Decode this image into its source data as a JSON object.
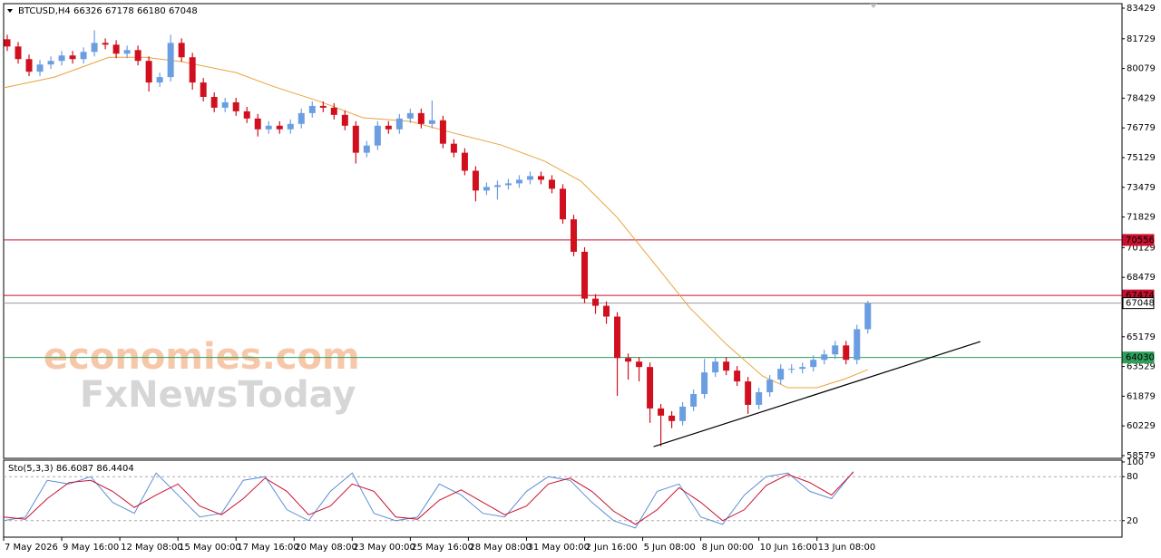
{
  "chart_data": {
    "type": "candlestick",
    "title": "BTCUSD,H4  66326 67178 66180 67048",
    "watermarks": [
      "economies.com",
      "FxNewsToday"
    ],
    "xlim": [
      0,
      308
    ],
    "xticks": [
      {
        "value": 0,
        "label": "7 May 2026"
      },
      {
        "value": 16,
        "label": "9 May 16:00"
      },
      {
        "value": 32,
        "label": "12 May 08:00"
      },
      {
        "value": 48,
        "label": "15 May 00:00"
      },
      {
        "value": 64,
        "label": "17 May 16:00"
      },
      {
        "value": 80,
        "label": "20 May 08:00"
      },
      {
        "value": 96,
        "label": "23 May 00:00"
      },
      {
        "value": 112,
        "label": "25 May 16:00"
      },
      {
        "value": 128,
        "label": "28 May 08:00"
      },
      {
        "value": 144,
        "label": "31 May 00:00"
      },
      {
        "value": 160,
        "label": "2 Jun 16:00"
      },
      {
        "value": 176,
        "label": "5 Jun 08:00"
      },
      {
        "value": 192,
        "label": "8 Jun 00:00"
      },
      {
        "value": 208,
        "label": "10 Jun 16:00"
      },
      {
        "value": 224,
        "label": "13 Jun 08:00"
      }
    ],
    "ylim": [
      58428,
      83680
    ],
    "yticks": [
      83429,
      81729,
      80079,
      78429,
      76779,
      75129,
      73479,
      71829,
      70129,
      68479,
      65179,
      63529,
      61879,
      60229,
      58579
    ],
    "up_color": "#6b9ee0",
    "down_color": "#d0101e",
    "x": [
      1,
      4,
      7,
      10,
      13,
      16,
      19,
      22,
      25,
      28,
      31,
      34,
      37,
      40,
      43,
      46,
      49,
      52,
      55,
      58,
      61,
      64,
      67,
      70,
      73,
      76,
      79,
      82,
      85,
      88,
      91,
      94,
      97,
      100,
      103,
      106,
      109,
      112,
      115,
      118,
      121,
      124,
      127,
      130,
      133,
      136,
      139,
      142,
      145,
      148,
      151,
      154,
      157,
      160,
      163,
      166,
      169,
      172,
      175,
      178,
      181,
      184,
      187,
      190,
      193,
      196,
      199,
      202,
      205,
      208,
      211,
      214,
      217,
      220,
      223,
      226,
      229,
      232,
      235,
      238
    ],
    "ohlc": [
      [
        81700,
        81950,
        81050,
        81300
      ],
      [
        81300,
        81550,
        80350,
        80600
      ],
      [
        80600,
        80850,
        79650,
        79900
      ],
      [
        79900,
        80550,
        79650,
        80300
      ],
      [
        80300,
        80750,
        80050,
        80500
      ],
      [
        80500,
        81050,
        80250,
        80800
      ],
      [
        80800,
        81050,
        80350,
        80600
      ],
      [
        80600,
        81250,
        80350,
        81000
      ],
      [
        81000,
        82200,
        80750,
        81500
      ],
      [
        81500,
        81750,
        81150,
        81400
      ],
      [
        81400,
        81650,
        80650,
        80900
      ],
      [
        80900,
        81350,
        80650,
        81100
      ],
      [
        81100,
        81350,
        80250,
        80500
      ],
      [
        80500,
        80750,
        78800,
        79300
      ],
      [
        79300,
        79850,
        79050,
        79600
      ],
      [
        79600,
        81950,
        79350,
        81500
      ],
      [
        81500,
        81750,
        80450,
        80700
      ],
      [
        80700,
        80950,
        78900,
        79300
      ],
      [
        79300,
        79550,
        78250,
        78500
      ],
      [
        78500,
        78750,
        77650,
        77900
      ],
      [
        77900,
        78450,
        77650,
        78200
      ],
      [
        78200,
        78450,
        77450,
        77700
      ],
      [
        77700,
        77950,
        77050,
        77300
      ],
      [
        77300,
        77550,
        76300,
        76700
      ],
      [
        76700,
        77150,
        76450,
        76900
      ],
      [
        76900,
        77150,
        76450,
        76700
      ],
      [
        76700,
        77250,
        76450,
        77000
      ],
      [
        77000,
        77850,
        76750,
        77600
      ],
      [
        77600,
        78250,
        77350,
        78000
      ],
      [
        78000,
        78250,
        77650,
        77900
      ],
      [
        77900,
        78150,
        77250,
        77500
      ],
      [
        77500,
        77750,
        76650,
        76900
      ],
      [
        76900,
        77150,
        74800,
        75400
      ],
      [
        75400,
        76050,
        75150,
        75800
      ],
      [
        75800,
        77150,
        75550,
        76900
      ],
      [
        76900,
        77150,
        76450,
        76700
      ],
      [
        76700,
        77550,
        76450,
        77300
      ],
      [
        77300,
        77850,
        77050,
        77600
      ],
      [
        77600,
        77850,
        76750,
        77000
      ],
      [
        77000,
        78300,
        76750,
        77200
      ],
      [
        77200,
        77450,
        75650,
        75900
      ],
      [
        75900,
        76150,
        75150,
        75400
      ],
      [
        75400,
        75650,
        74150,
        74400
      ],
      [
        74400,
        74650,
        72700,
        73300
      ],
      [
        73300,
        73750,
        73050,
        73500
      ],
      [
        73500,
        73850,
        72800,
        73600
      ],
      [
        73600,
        73950,
        73350,
        73700
      ],
      [
        73700,
        74150,
        73450,
        73900
      ],
      [
        73900,
        74350,
        73650,
        74100
      ],
      [
        74100,
        74350,
        73650,
        73900
      ],
      [
        73900,
        74150,
        73150,
        73400
      ],
      [
        73400,
        73650,
        71450,
        71700
      ],
      [
        71700,
        71950,
        69650,
        69900
      ],
      [
        69900,
        70150,
        67050,
        67300
      ],
      [
        67300,
        67550,
        66450,
        66900
      ],
      [
        66900,
        67150,
        65900,
        66300
      ],
      [
        66300,
        66550,
        61900,
        64000
      ],
      [
        64000,
        64250,
        62800,
        63800
      ],
      [
        63800,
        64050,
        62700,
        63500
      ],
      [
        63500,
        63750,
        60400,
        61200
      ],
      [
        61200,
        61450,
        59100,
        60800
      ],
      [
        60800,
        61050,
        60100,
        60500
      ],
      [
        60500,
        61550,
        60250,
        61300
      ],
      [
        61300,
        62250,
        61050,
        62000
      ],
      [
        62000,
        63950,
        61750,
        63200
      ],
      [
        63200,
        64050,
        62950,
        63800
      ],
      [
        63800,
        64050,
        63050,
        63300
      ],
      [
        63300,
        63550,
        62450,
        62700
      ],
      [
        62700,
        62950,
        60900,
        61400
      ],
      [
        61400,
        62350,
        61150,
        62100
      ],
      [
        62100,
        63050,
        61850,
        62800
      ],
      [
        62800,
        63650,
        62550,
        63400
      ],
      [
        63400,
        63650,
        63150,
        63400
      ],
      [
        63400,
        63750,
        63150,
        63500
      ],
      [
        63500,
        64150,
        63250,
        63900
      ],
      [
        63900,
        64450,
        63650,
        64200
      ],
      [
        64200,
        64950,
        63950,
        64700
      ],
      [
        64700,
        64950,
        63650,
        63900
      ],
      [
        63900,
        65850,
        63650,
        65600
      ],
      [
        65600,
        67178,
        65350,
        67048
      ]
    ],
    "moving_average": {
      "color": "#e8a33c",
      "x": [
        0,
        14,
        29,
        39,
        49,
        64,
        74,
        87,
        99,
        112,
        124,
        137,
        149,
        159,
        169,
        179,
        189,
        199,
        209,
        216,
        224,
        232,
        238
      ],
      "values": [
        79000,
        79600,
        80700,
        80700,
        80460,
        79850,
        79100,
        78250,
        77340,
        77140,
        76490,
        75830,
        74930,
        73820,
        71800,
        69300,
        66780,
        64770,
        63000,
        62350,
        62350,
        62860,
        63360
      ]
    },
    "levels": [
      {
        "value": 70556,
        "color": "#c8102e"
      },
      {
        "value": 67474,
        "color": "#c8102e"
      },
      {
        "value": 67048,
        "color": "#999999"
      },
      {
        "value": 64030,
        "color": "#2e9e5b"
      }
    ],
    "trendline": {
      "color": "#000000",
      "x": [
        179,
        269
      ],
      "values": [
        59080,
        64915
      ]
    },
    "indicator": {
      "label": "Sto(5,3,3) 86.6087 86.4404",
      "ylim": [
        0,
        100
      ],
      "yticks": [
        100,
        80,
        20
      ],
      "levels": [
        80,
        20
      ],
      "x": [
        0,
        6,
        12,
        18,
        24,
        30,
        36,
        42,
        48,
        54,
        60,
        66,
        72,
        78,
        84,
        90,
        96,
        102,
        108,
        114,
        120,
        126,
        132,
        138,
        144,
        150,
        156,
        162,
        168,
        174,
        180,
        186,
        192,
        198,
        204,
        210,
        216,
        222,
        228,
        234
      ],
      "series": [
        {
          "color": "#5b8fd6",
          "values": [
            20,
            25,
            75,
            70,
            80,
            45,
            30,
            85,
            55,
            25,
            30,
            75,
            80,
            35,
            20,
            60,
            85,
            30,
            20,
            25,
            70,
            55,
            30,
            25,
            60,
            80,
            75,
            45,
            20,
            10,
            60,
            70,
            25,
            15,
            55,
            80,
            85,
            60,
            50,
            87
          ]
        },
        {
          "color": "#c8102e",
          "values": [
            25,
            22,
            50,
            72,
            75,
            60,
            38,
            55,
            70,
            40,
            28,
            50,
            78,
            60,
            28,
            40,
            70,
            60,
            25,
            22,
            48,
            62,
            45,
            28,
            40,
            70,
            78,
            60,
            33,
            15,
            35,
            65,
            45,
            20,
            35,
            68,
            83,
            72,
            55,
            86
          ]
        }
      ]
    }
  }
}
